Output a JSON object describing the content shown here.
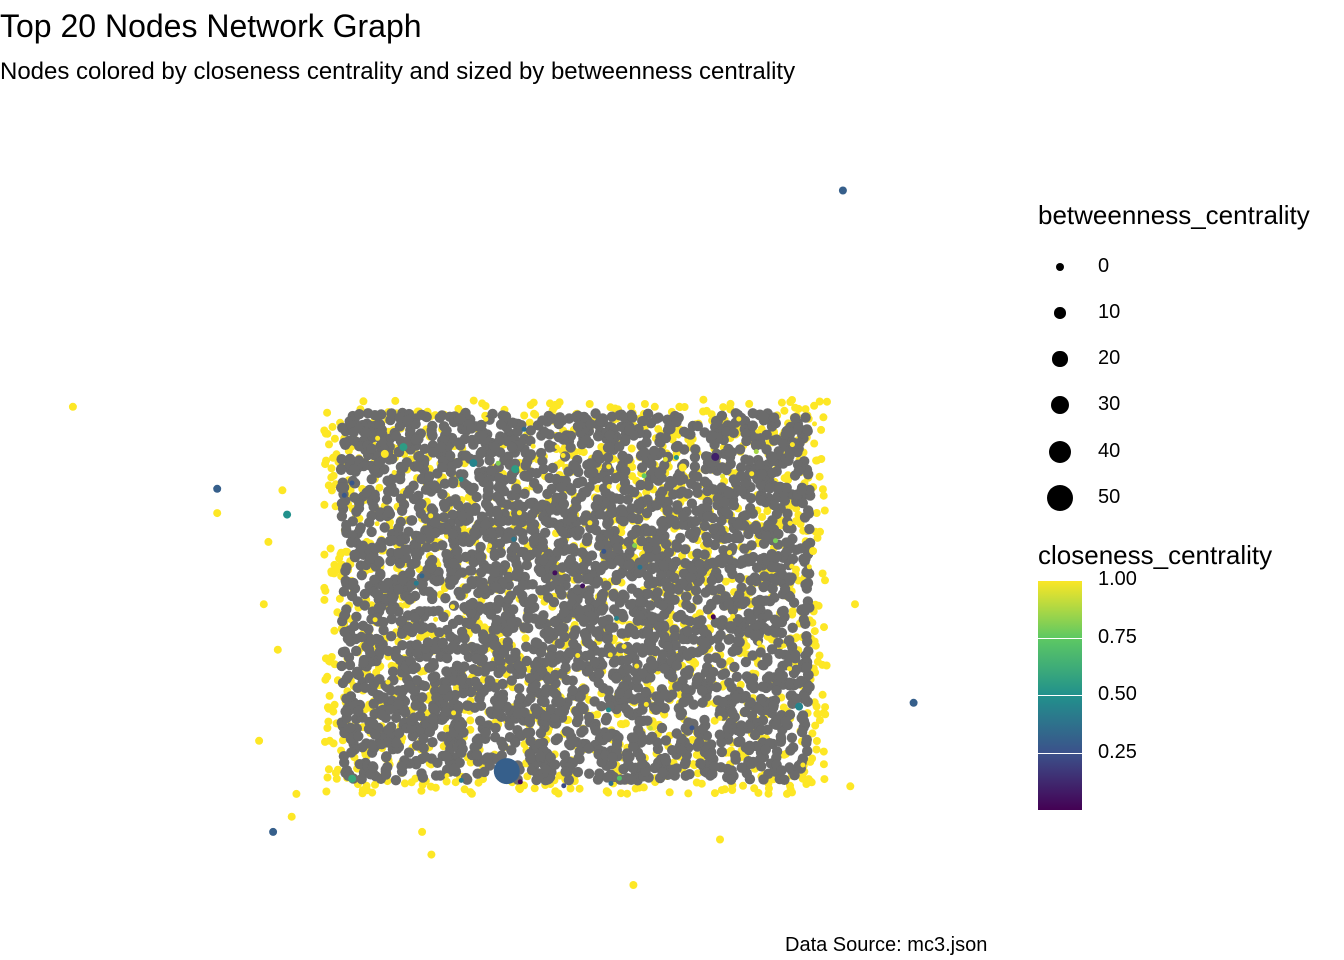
{
  "title": "Top 20 Nodes Network Graph",
  "subtitle": "Nodes colored by closeness centrality and sized by betweenness centrality",
  "caption": "Data Source: mc3.json",
  "legend": {
    "size_title": "betweenness_centrality",
    "size_breaks": [
      "0",
      "10",
      "20",
      "30",
      "40",
      "50"
    ],
    "color_title": "closeness_centrality",
    "color_breaks": [
      "1.00",
      "0.75",
      "0.50",
      "0.25"
    ]
  },
  "colors": {
    "na_value": "#6b6b6b",
    "viridis_high": "#fde725",
    "viridis_low": "#440154"
  },
  "chart_data": {
    "type": "scatter",
    "description_kind": "network-graph",
    "size_scale": {
      "variable": "betweenness_centrality",
      "breaks": [
        0,
        10,
        20,
        30,
        40,
        50
      ]
    },
    "color_scale": {
      "variable": "closeness_centrality",
      "palette": "viridis",
      "breaks": [
        0.25,
        0.5,
        0.75,
        1.0
      ],
      "limits": [
        0,
        1
      ]
    },
    "na_color": "#6b6b6b",
    "outlier_nodes": [
      {
        "x": 0.857,
        "y": 0.915,
        "closeness": 0.3,
        "betweenness": 0
      },
      {
        "x": 0.03,
        "y": 0.63,
        "closeness": 1.0,
        "betweenness": 0
      },
      {
        "x": 0.655,
        "y": 0.63,
        "closeness": 1.0,
        "betweenness": 0
      },
      {
        "x": 0.385,
        "y": 0.577,
        "closeness": 0.55,
        "betweenness": 0
      },
      {
        "x": 0.72,
        "y": 0.564,
        "closeness": 0.1,
        "betweenness": 0
      },
      {
        "x": 0.365,
        "y": 0.568,
        "closeness": 1.0,
        "betweenness": 0
      },
      {
        "x": 0.46,
        "y": 0.556,
        "closeness": 0.45,
        "betweenness": 0
      },
      {
        "x": 0.505,
        "y": 0.548,
        "closeness": 0.55,
        "betweenness": 0
      },
      {
        "x": 0.685,
        "y": 0.55,
        "closeness": 1.0,
        "betweenness": 0
      },
      {
        "x": 0.185,
        "y": 0.522,
        "closeness": 0.3,
        "betweenness": 0
      },
      {
        "x": 0.185,
        "y": 0.49,
        "closeness": 1.0,
        "betweenness": 0
      },
      {
        "x": 0.255,
        "y": 0.52,
        "closeness": 1.0,
        "betweenness": 0
      },
      {
        "x": 0.26,
        "y": 0.488,
        "closeness": 0.5,
        "betweenness": 0
      },
      {
        "x": 0.24,
        "y": 0.452,
        "closeness": 1.0,
        "betweenness": 0
      },
      {
        "x": 0.825,
        "y": 0.44,
        "closeness": 1.0,
        "betweenness": 0
      },
      {
        "x": 0.235,
        "y": 0.37,
        "closeness": 1.0,
        "betweenness": 0
      },
      {
        "x": 0.87,
        "y": 0.37,
        "closeness": 1.0,
        "betweenness": 0
      },
      {
        "x": 0.25,
        "y": 0.31,
        "closeness": 1.0,
        "betweenness": 0
      },
      {
        "x": 0.835,
        "y": 0.29,
        "closeness": 1.0,
        "betweenness": 0
      },
      {
        "x": 0.933,
        "y": 0.24,
        "closeness": 0.3,
        "betweenness": 0
      },
      {
        "x": 0.81,
        "y": 0.235,
        "closeness": 0.45,
        "betweenness": 0
      },
      {
        "x": 0.23,
        "y": 0.19,
        "closeness": 1.0,
        "betweenness": 0
      },
      {
        "x": 0.33,
        "y": 0.14,
        "closeness": 0.6,
        "betweenness": 0
      },
      {
        "x": 0.496,
        "y": 0.15,
        "closeness": 0.3,
        "betweenness": 50
      },
      {
        "x": 0.865,
        "y": 0.13,
        "closeness": 1.0,
        "betweenness": 0
      },
      {
        "x": 0.27,
        "y": 0.12,
        "closeness": 1.0,
        "betweenness": 0
      },
      {
        "x": 0.265,
        "y": 0.09,
        "closeness": 1.0,
        "betweenness": 0
      },
      {
        "x": 0.245,
        "y": 0.07,
        "closeness": 0.3,
        "betweenness": 0
      },
      {
        "x": 0.405,
        "y": 0.07,
        "closeness": 1.0,
        "betweenness": 0
      },
      {
        "x": 0.415,
        "y": 0.04,
        "closeness": 1.0,
        "betweenness": 0
      },
      {
        "x": 0.725,
        "y": 0.06,
        "closeness": 1.0,
        "betweenness": 0
      },
      {
        "x": 0.632,
        "y": 0.0,
        "closeness": 1.0,
        "betweenness": 0
      }
    ]
  }
}
